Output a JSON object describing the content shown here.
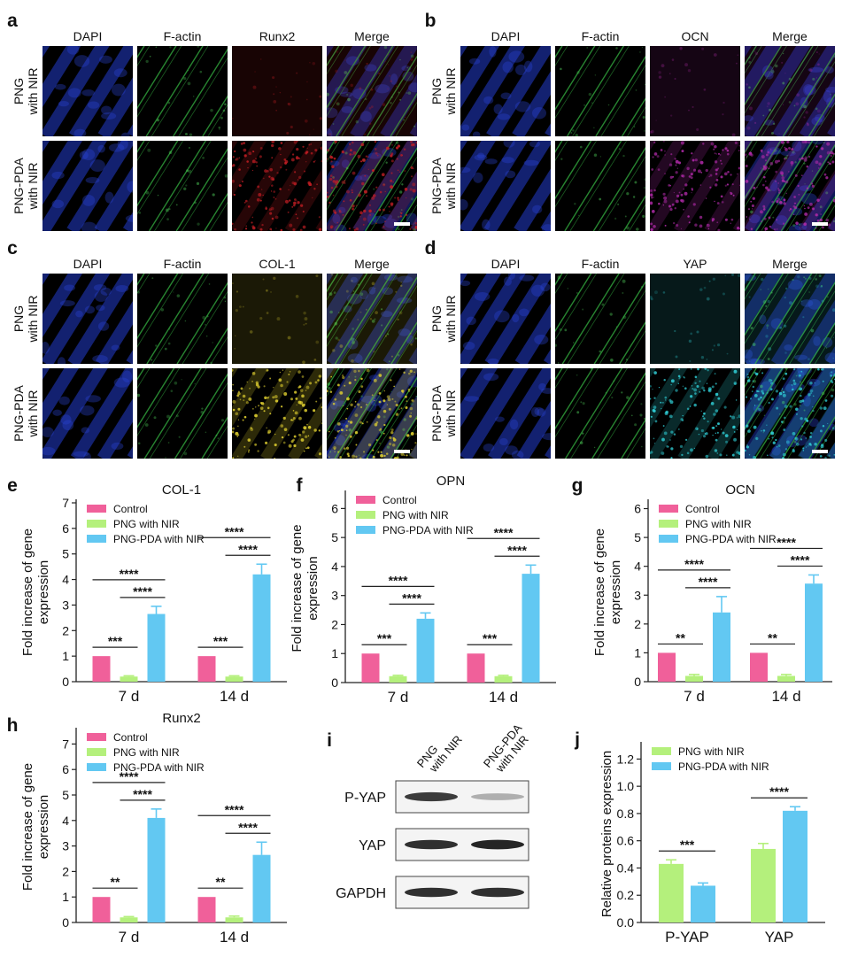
{
  "colors": {
    "control": "#f0609a",
    "png_nir": "#b4f07c",
    "png_pda_nir": "#62c8f2",
    "dapi": "#1c2fa0",
    "factin": "#2f9e3a",
    "runx2": "#c41e24",
    "ocn": "#b02aa8",
    "col1": "#e0d030",
    "yap": "#30d0d8"
  },
  "icon_names": [
    "scale-bar-icon",
    "blot-band-icon",
    "significance-bracket-icon"
  ],
  "panels": {
    "a": {
      "label": "a",
      "columns": [
        "DAPI",
        "F-actin",
        "Runx2",
        "Merge"
      ],
      "rows": [
        "PNG with NIR",
        "PNG-PDA with NIR"
      ]
    },
    "b": {
      "label": "b",
      "columns": [
        "DAPI",
        "F-actin",
        "OCN",
        "Merge"
      ],
      "rows": [
        "PNG with NIR",
        "PNG-PDA with NIR"
      ]
    },
    "c": {
      "label": "c",
      "columns": [
        "DAPI",
        "F-actin",
        "COL-1",
        "Merge"
      ],
      "rows": [
        "PNG with NIR",
        "PNG-PDA with NIR"
      ]
    },
    "d": {
      "label": "d",
      "columns": [
        "DAPI",
        "F-actin",
        "YAP",
        "Merge"
      ],
      "rows": [
        "PNG with NIR",
        "PNG-PDA with NIR"
      ]
    },
    "i": {
      "label": "i",
      "lanes": [
        "PNG with NIR",
        "PNG-PDA with NIR"
      ],
      "bands": [
        "P-YAP",
        "YAP",
        "GAPDH"
      ],
      "band_intensity": [
        [
          0.85,
          0.35
        ],
        [
          0.9,
          0.95
        ],
        [
          0.9,
          0.9
        ]
      ]
    }
  },
  "chart_data": [
    {
      "panel": "e",
      "type": "bar",
      "title": "COL-1",
      "ylabel": "Fold increase of gene expression",
      "categories": [
        "7 d",
        "14 d"
      ],
      "ylim": [
        0,
        7
      ],
      "yticks": [
        0,
        1,
        2,
        3,
        4,
        5,
        6,
        7
      ],
      "legend": "top-left",
      "series": [
        {
          "name": "Control",
          "values": [
            1.0,
            1.0
          ],
          "errors": [
            0,
            0
          ]
        },
        {
          "name": "PNG with NIR",
          "values": [
            0.2,
            0.2
          ],
          "errors": [
            0.03,
            0.03
          ]
        },
        {
          "name": "PNG-PDA with NIR",
          "values": [
            2.65,
            4.2
          ],
          "errors": [
            0.3,
            0.4
          ]
        }
      ],
      "significance": [
        {
          "group": 0,
          "from": 0,
          "to": 1,
          "label": "***"
        },
        {
          "group": 0,
          "from": 1,
          "to": 2,
          "label": "****"
        },
        {
          "group": 0,
          "from": 0,
          "to": 2,
          "label": "****"
        },
        {
          "group": 1,
          "from": 0,
          "to": 1,
          "label": "***"
        },
        {
          "group": 1,
          "from": 1,
          "to": 2,
          "label": "****"
        },
        {
          "group": 1,
          "from": 0,
          "to": 2,
          "label": "****"
        }
      ]
    },
    {
      "panel": "f",
      "type": "bar",
      "title": "OPN",
      "ylabel": "Fold increase of gene expression",
      "categories": [
        "7 d",
        "14 d"
      ],
      "ylim": [
        0,
        6.5
      ],
      "yticks": [
        0,
        1,
        2,
        3,
        4,
        5,
        6
      ],
      "legend": "top-left",
      "series": [
        {
          "name": "Control",
          "values": [
            1.0,
            1.0
          ],
          "errors": [
            0,
            0
          ]
        },
        {
          "name": "PNG with NIR",
          "values": [
            0.22,
            0.22
          ],
          "errors": [
            0.03,
            0.03
          ]
        },
        {
          "name": "PNG-PDA with NIR",
          "values": [
            2.2,
            3.75
          ],
          "errors": [
            0.2,
            0.3
          ]
        }
      ],
      "significance": [
        {
          "group": 0,
          "from": 0,
          "to": 1,
          "label": "***"
        },
        {
          "group": 0,
          "from": 1,
          "to": 2,
          "label": "****"
        },
        {
          "group": 0,
          "from": 0,
          "to": 2,
          "label": "****"
        },
        {
          "group": 1,
          "from": 0,
          "to": 1,
          "label": "***"
        },
        {
          "group": 1,
          "from": 1,
          "to": 2,
          "label": "****"
        },
        {
          "group": 1,
          "from": 0,
          "to": 2,
          "label": "****"
        }
      ]
    },
    {
      "panel": "g",
      "type": "bar",
      "title": "OCN",
      "ylabel": "Fold increase of gene expression",
      "categories": [
        "7 d",
        "14 d"
      ],
      "ylim": [
        0,
        6.2
      ],
      "yticks": [
        0,
        1,
        2,
        3,
        4,
        5,
        6
      ],
      "legend": "top-left",
      "series": [
        {
          "name": "Control",
          "values": [
            1.0,
            1.0
          ],
          "errors": [
            0,
            0
          ]
        },
        {
          "name": "PNG with NIR",
          "values": [
            0.2,
            0.2
          ],
          "errors": [
            0.05,
            0.05
          ]
        },
        {
          "name": "PNG-PDA with NIR",
          "values": [
            2.4,
            3.4
          ],
          "errors": [
            0.55,
            0.3
          ]
        }
      ],
      "significance": [
        {
          "group": 0,
          "from": 0,
          "to": 1,
          "label": "**"
        },
        {
          "group": 0,
          "from": 1,
          "to": 2,
          "label": "****"
        },
        {
          "group": 0,
          "from": 0,
          "to": 2,
          "label": "****"
        },
        {
          "group": 1,
          "from": 0,
          "to": 1,
          "label": "**"
        },
        {
          "group": 1,
          "from": 1,
          "to": 2,
          "label": "****"
        },
        {
          "group": 1,
          "from": 0,
          "to": 2,
          "label": "****"
        }
      ]
    },
    {
      "panel": "h",
      "type": "bar",
      "title": "Runx2",
      "ylabel": "Fold increase of gene expression",
      "categories": [
        "7 d",
        "14 d"
      ],
      "ylim": [
        0,
        7.5
      ],
      "yticks": [
        0,
        1,
        2,
        3,
        4,
        5,
        6,
        7
      ],
      "legend": "top-left",
      "series": [
        {
          "name": "Control",
          "values": [
            1.0,
            1.0
          ],
          "errors": [
            0,
            0
          ]
        },
        {
          "name": "PNG with NIR",
          "values": [
            0.2,
            0.2
          ],
          "errors": [
            0.03,
            0.05
          ]
        },
        {
          "name": "PNG-PDA with NIR",
          "values": [
            4.1,
            2.65
          ],
          "errors": [
            0.35,
            0.5
          ]
        }
      ],
      "significance": [
        {
          "group": 0,
          "from": 0,
          "to": 1,
          "label": "**"
        },
        {
          "group": 0,
          "from": 1,
          "to": 2,
          "label": "****"
        },
        {
          "group": 0,
          "from": 0,
          "to": 2,
          "label": "****"
        },
        {
          "group": 1,
          "from": 0,
          "to": 1,
          "label": "**"
        },
        {
          "group": 1,
          "from": 1,
          "to": 2,
          "label": "****"
        },
        {
          "group": 1,
          "from": 0,
          "to": 2,
          "label": "****"
        }
      ]
    },
    {
      "panel": "j",
      "type": "bar",
      "title": "",
      "ylabel": "Relative proteins expression",
      "categories": [
        "P-YAP",
        "YAP"
      ],
      "ylim": [
        0,
        1.3
      ],
      "yticks": [
        0.0,
        0.2,
        0.4,
        0.6,
        0.8,
        1.0,
        1.2
      ],
      "legend": "top-left",
      "series": [
        {
          "name": "PNG with NIR",
          "values": [
            0.43,
            0.54
          ],
          "errors": [
            0.03,
            0.04
          ]
        },
        {
          "name": "PNG-PDA with NIR",
          "values": [
            0.27,
            0.82
          ],
          "errors": [
            0.02,
            0.03
          ]
        }
      ],
      "significance": [
        {
          "group": 0,
          "from": 0,
          "to": 1,
          "label": "***"
        },
        {
          "group": 1,
          "from": 0,
          "to": 1,
          "label": "****"
        }
      ]
    }
  ]
}
